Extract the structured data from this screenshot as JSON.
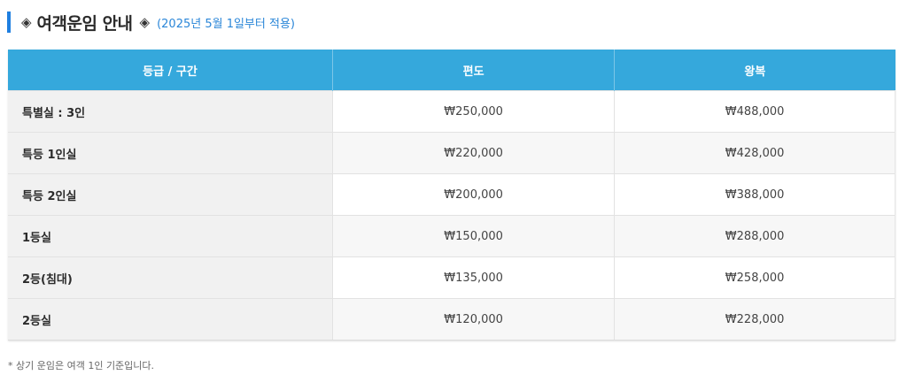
{
  "header": {
    "title": "여객운임 안내",
    "diamond_icon": "◈",
    "subtitle": "(2025년 5월 1일부터 적용)",
    "accent_color": "#1f7fe0"
  },
  "table": {
    "header_color": "#35a8dc",
    "columns": [
      "등급 / 구간",
      "편도",
      "왕복"
    ],
    "rows": [
      {
        "grade": "특별실 : 3인",
        "one_way": "₩250,000",
        "round_trip": "₩488,000"
      },
      {
        "grade": "특등 1인실",
        "one_way": "₩220,000",
        "round_trip": "₩428,000"
      },
      {
        "grade": "특등 2인실",
        "one_way": "₩200,000",
        "round_trip": "₩388,000"
      },
      {
        "grade": "1등실",
        "one_way": "₩150,000",
        "round_trip": "₩288,000"
      },
      {
        "grade": "2등(침대)",
        "one_way": "₩135,000",
        "round_trip": "₩258,000"
      },
      {
        "grade": "2등실",
        "one_way": "₩120,000",
        "round_trip": "₩228,000"
      }
    ]
  },
  "note": "* 상기 운임은 여객 1인 기준입니다."
}
